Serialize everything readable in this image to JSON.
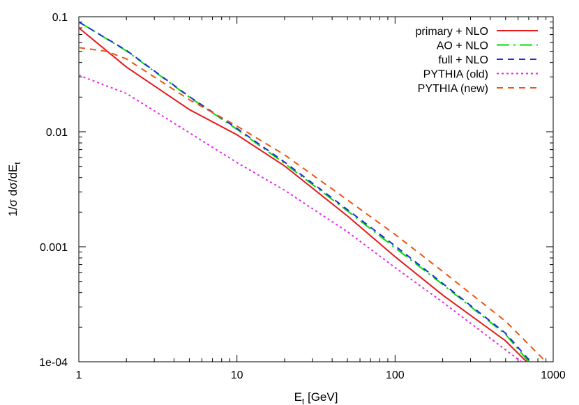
{
  "chart_data": {
    "type": "line",
    "xscale": "log",
    "yscale": "log",
    "xlim": [
      1,
      1000
    ],
    "ylim": [
      0.0001,
      0.1
    ],
    "xticks": [
      {
        "value": 1,
        "label": "1"
      },
      {
        "value": 10,
        "label": "10"
      },
      {
        "value": 100,
        "label": "100"
      },
      {
        "value": 1000,
        "label": "1000"
      }
    ],
    "yticks": [
      {
        "value": 0.1,
        "label": "0.1"
      },
      {
        "value": 0.01,
        "label": "0.01"
      },
      {
        "value": 0.001,
        "label": "0.001"
      },
      {
        "value": 0.0001,
        "label": "1e-04"
      }
    ],
    "xlabel": {
      "main": "E",
      "sub": "t",
      "rest": " [GeV]"
    },
    "ylabel": {
      "main": "1/σ dσ/dE",
      "sub": "t"
    },
    "grid": false,
    "legend_position": "top-right",
    "series": [
      {
        "name": "primary + NLO",
        "color": "#e41a1c",
        "dash": "solid",
        "x": [
          1,
          2,
          5,
          10,
          20,
          50,
          100,
          200,
          500,
          680
        ],
        "y": [
          0.08,
          0.0365,
          0.0156,
          0.0094,
          0.00505,
          0.00185,
          0.00082,
          0.00038,
          0.000152,
          0.0001
        ]
      },
      {
        "name": "AO + NLO",
        "color": "#00dd00",
        "dash": "longdash-dot",
        "x": [
          1,
          2,
          5,
          10,
          20,
          50,
          100,
          200,
          500,
          700
        ],
        "y": [
          0.09,
          0.0505,
          0.02,
          0.0105,
          0.0053,
          0.00205,
          0.00098,
          0.00047,
          0.000173,
          0.0001
        ]
      },
      {
        "name": "full + NLO",
        "color": "#1a2fd8",
        "dash": "dash",
        "x": [
          1,
          2,
          5,
          10,
          20,
          50,
          100,
          200,
          500,
          720
        ],
        "y": [
          0.09,
          0.051,
          0.0202,
          0.0107,
          0.00545,
          0.0021,
          0.00102,
          0.00048,
          0.000177,
          0.0001
        ]
      },
      {
        "name": "PYTHIA (old)",
        "color": "#ee22ee",
        "dash": "dot",
        "x": [
          1,
          2,
          5,
          10,
          20,
          50,
          100,
          200,
          500,
          630
        ],
        "y": [
          0.031,
          0.0215,
          0.0098,
          0.0054,
          0.0031,
          0.00135,
          0.00066,
          0.00033,
          0.000127,
          0.0001
        ]
      },
      {
        "name": "PYTHIA (new)",
        "color": "#ee5511",
        "dash": "dash",
        "x": [
          1,
          1.5,
          2,
          5,
          10,
          20,
          50,
          100,
          200,
          500,
          900
        ],
        "y": [
          0.054,
          0.05,
          0.043,
          0.019,
          0.0112,
          0.0063,
          0.00255,
          0.00128,
          0.00061,
          0.000225,
          0.0001
        ]
      }
    ]
  }
}
